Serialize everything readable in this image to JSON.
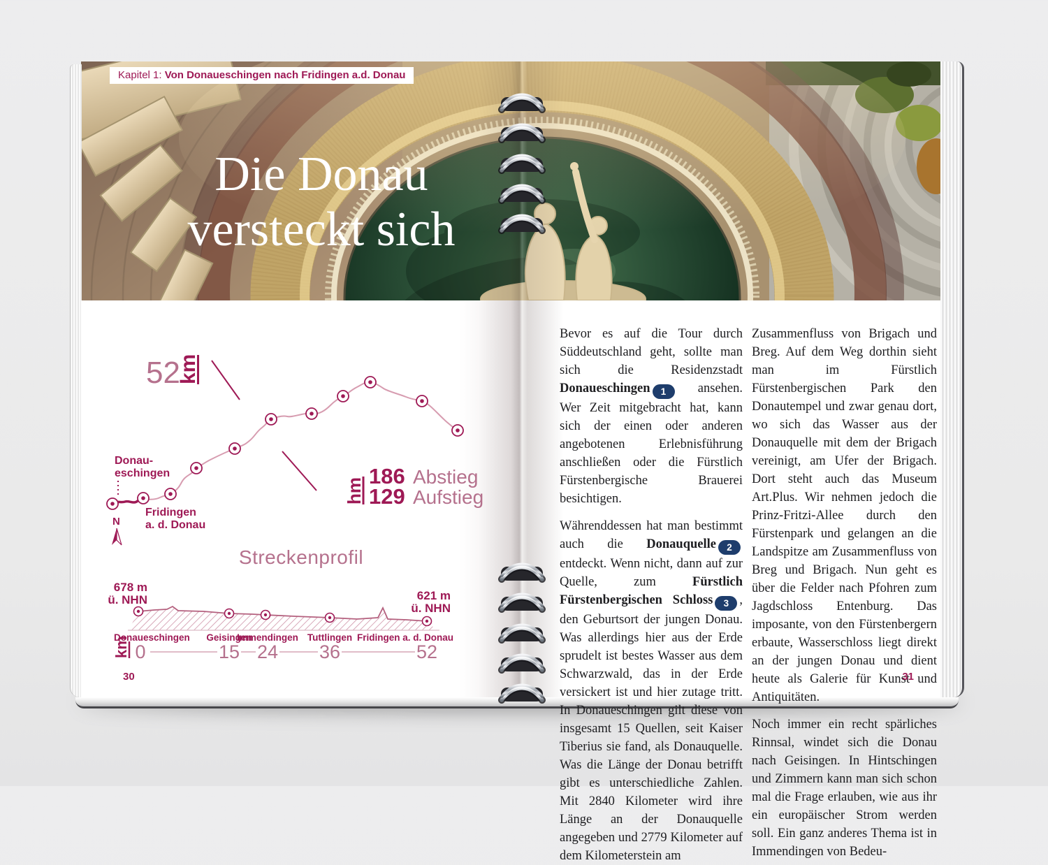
{
  "colors": {
    "accent_dark": "#9e1955",
    "accent_light": "#b5718d",
    "route_pink": "#d79cb0",
    "badge_navy": "#1e3d6c"
  },
  "chapter_bar": {
    "prefix": "Kapitel 1:",
    "title": "Von Donaueschingen nach Fridingen a.d. Donau"
  },
  "hero": {
    "title_line1": "Die Donau",
    "title_line2": "versteckt sich"
  },
  "left_page": {
    "page_number": "30",
    "map": {
      "distance_value": "52",
      "distance_unit": "km",
      "start_label_1": "Donau-",
      "start_label_2": "eschingen",
      "end_label_1": "Fridingen",
      "end_label_2": "a. d. Donau",
      "compass": "N",
      "elevation_unit": "hm",
      "descent_value": "186",
      "descent_label": "Abstieg",
      "ascent_value": "129",
      "ascent_label": "Aufstieg"
    },
    "profile": {
      "title": "Streckenprofil",
      "start_elevation_1": "678 m",
      "start_elevation_2": "ü. NHN",
      "end_elevation_1": "621 m",
      "end_elevation_2": "ü. NHN",
      "axis_unit": "km",
      "ticks": [
        "0",
        "15",
        "24",
        "36",
        "52"
      ],
      "places": [
        "Donaueschingen",
        "Geisingen",
        "Immendingen",
        "Tuttlingen",
        "Fridingen a. d. Donau"
      ]
    }
  },
  "right_page": {
    "page_number": "31",
    "column1": [
      {
        "segments": [
          {
            "t": "Bevor es auf die Tour durch Süddeutschland geht, sollte man sich die Residenzstadt "
          },
          {
            "t": "Donaueschingen",
            "b": true
          },
          {
            "badge": "1"
          },
          {
            "t": " ansehen. Wer Zeit mitgebracht hat, kann sich der einen oder anderen angebotenen Erlebnisführung anschließen oder die Fürstlich Fürstenbergische Brauerei besichtigen."
          }
        ]
      },
      {
        "segments": [
          {
            "t": "Währenddessen hat man bestimmt auch die "
          },
          {
            "t": "Donauquelle",
            "b": true
          },
          {
            "badge": "2"
          },
          {
            "t": " entdeckt. Wenn nicht, dann auf zur Quelle, zum "
          },
          {
            "t": "Fürstlich Fürstenbergischen Schloss",
            "b": true
          },
          {
            "badge": "3"
          },
          {
            "t": ", den Geburtsort der jungen Donau. Was allerdings hier aus der Erde sprudelt ist bestes Wasser aus dem Schwarzwald, das in der Erde versickert ist und hier zutage tritt. In Donaueschingen gilt diese von insgesamt 15 Quellen, seit Kaiser Tiberius sie fand, als Donauquelle. Was die Länge der Donau betrifft gibt es unterschiedliche Zahlen. Mit 2840 Kilometer wird ihre Länge an der Donauquelle angegeben und 2779 Kilometer auf dem Kilometerstein am"
          }
        ]
      }
    ],
    "column2": [
      {
        "segments": [
          {
            "t": "Zusammenfluss von Brigach und Breg. Auf dem Weg dorthin sieht man im Fürstlich Fürstenbergischen Park den Donautempel und zwar genau dort, wo sich das Wasser aus der Donauquelle mit dem der Brigach vereinigt, am Ufer der Brigach. Dort steht auch das Museum Art.Plus. Wir nehmen jedoch die Prinz-Fritzi-Allee durch den Fürstenpark und gelangen an die Landspitze am Zusammenfluss von Breg und Brigach. Nun geht es über die Felder nach Pfohren zum Jagdschloss Entenburg. Das imposante, von den Fürstenbergern erbaute, Wasserschloss liegt direkt an der jungen Donau und dient heute als Galerie für Kunst und Antiquitäten."
          }
        ]
      },
      {
        "segments": [
          {
            "t": "Noch immer ein recht spärliches Rinnsal, windet sich die Donau nach Geisingen. In Hintschingen und Zimmern kann man sich schon mal die Frage erlauben, wie aus ihr ein europäischer Strom werden soll. Ein ganz anderes Thema ist in Immendingen von Bedeu-"
          }
        ]
      }
    ]
  },
  "chart_data": {
    "type": "line",
    "title": "Streckenprofil",
    "x_km": [
      0,
      15,
      24,
      36,
      52
    ],
    "places": [
      "Donaueschingen",
      "Geisingen",
      "Immendingen",
      "Tuttlingen",
      "Fridingen a. d. Donau"
    ],
    "elevation_m": [
      678,
      668,
      660,
      648,
      621
    ],
    "start_elevation": "678 m ü. NHN",
    "end_elevation": "621 m ü. NHN",
    "distance_km": 52,
    "descent_hm": 186,
    "ascent_hm": 129,
    "xlabel": "km",
    "ylabel": "hm",
    "grid": false
  }
}
